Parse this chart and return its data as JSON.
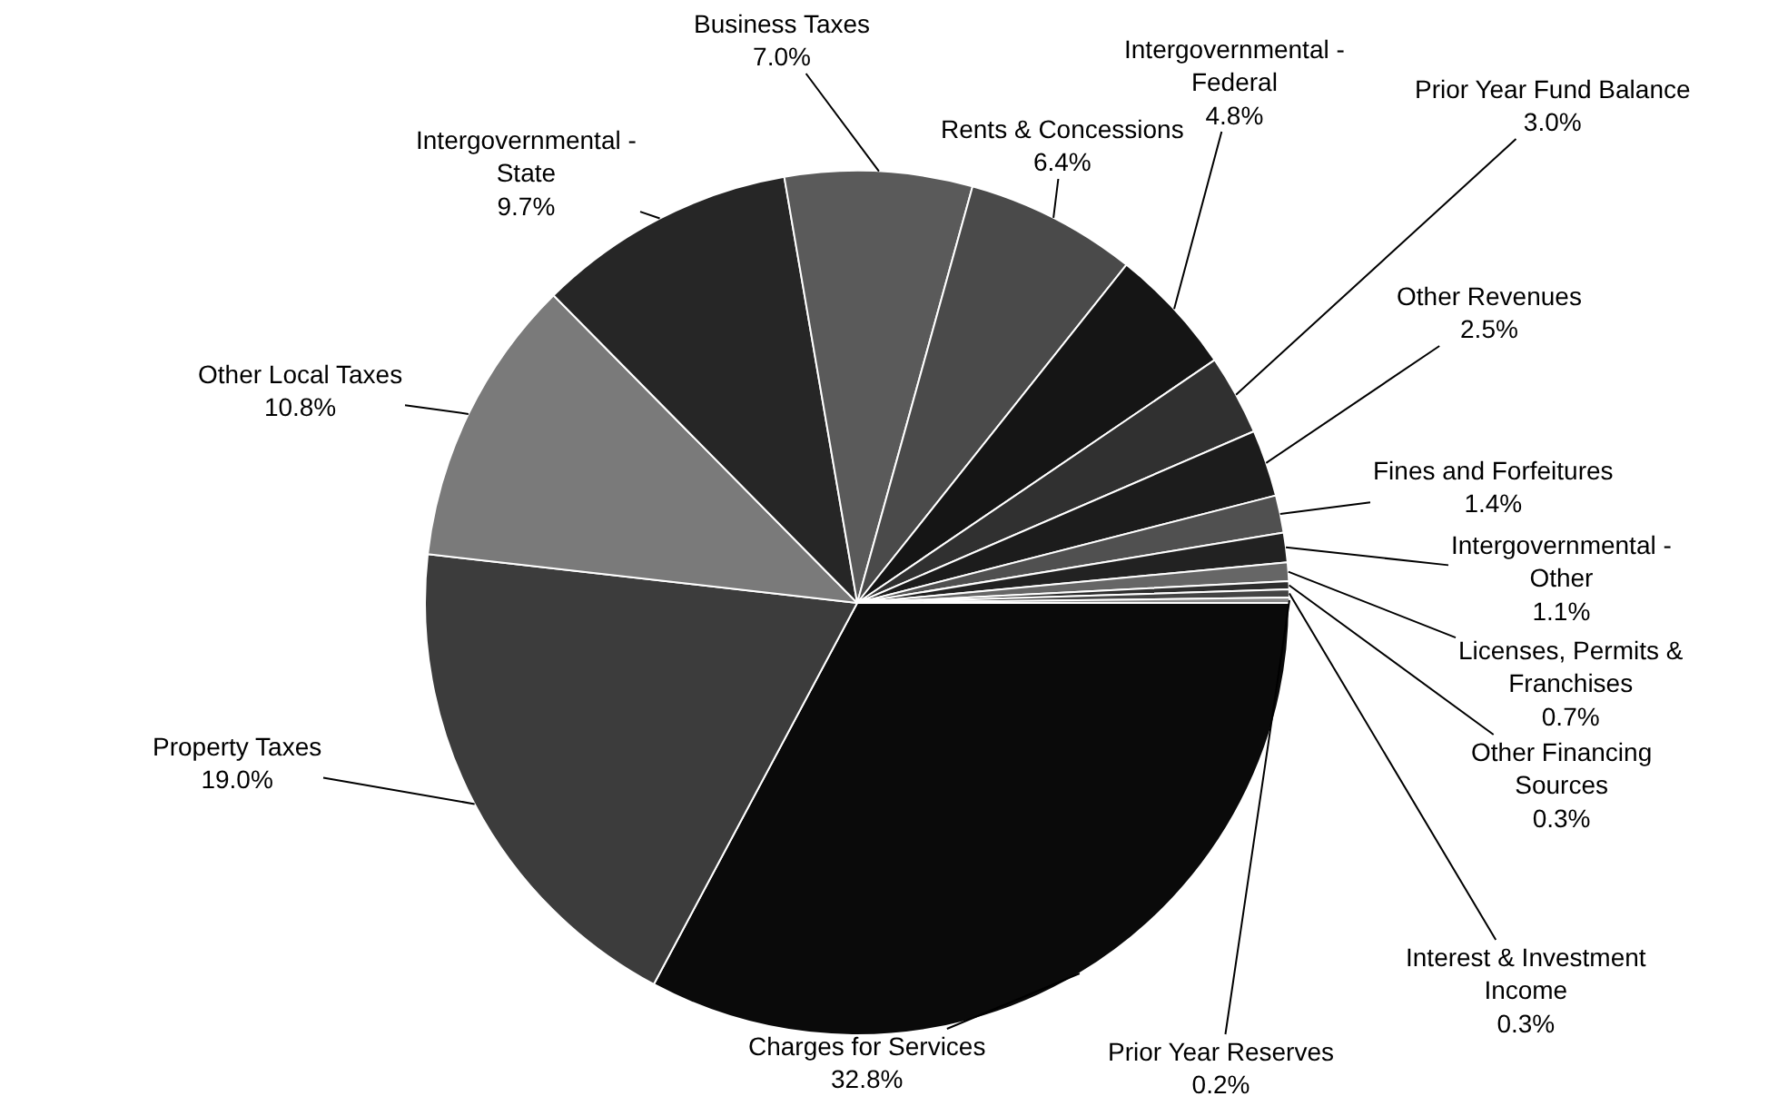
{
  "chart_data": {
    "type": "pie",
    "categories": [
      "Charges for Services",
      "Property Taxes",
      "Other Local Taxes",
      "Intergovernmental - State",
      "Business Taxes",
      "Rents & Concessions",
      "Intergovernmental - Federal",
      "Prior Year Fund Balance",
      "Other Revenues",
      "Fines and Forfeitures",
      "Intergovernmental - Other",
      "Licenses, Permits & Franchises",
      "Other Financing Sources",
      "Interest & Investment Income",
      "Prior Year Reserves"
    ],
    "values": [
      32.8,
      19.0,
      10.8,
      9.7,
      7.0,
      6.4,
      4.8,
      3.0,
      2.5,
      1.4,
      1.1,
      0.7,
      0.3,
      0.3,
      0.2
    ],
    "value_labels": [
      "32.8%",
      "19.0%",
      "10.8%",
      "9.7%",
      "7.0%",
      "6.4%",
      "4.8%",
      "3.0%",
      "2.5%",
      "1.4%",
      "1.1%",
      "0.7%",
      "0.3%",
      "0.3%",
      "0.2%"
    ],
    "colors": [
      "#0a0a0a",
      "#3c3c3c",
      "#7a7a7a",
      "#262626",
      "#5a5a5a",
      "#4a4a4a",
      "#151515",
      "#303030",
      "#1c1c1c",
      "#505050",
      "#222222",
      "#666666",
      "#2e2e2e",
      "#444444",
      "#888888"
    ],
    "legend": false
  }
}
